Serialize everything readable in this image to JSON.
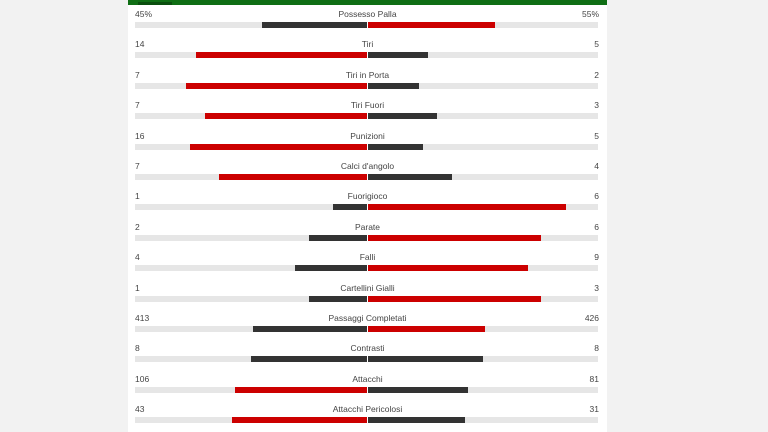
{
  "colors": {
    "header_green": "#0f6e14",
    "red": "#cc0000",
    "dark": "#333333",
    "track": "#e6e6e6"
  },
  "stats": [
    {
      "label": "Possesso Palla",
      "left": "45%",
      "right": "55%",
      "left_frac": 0.45,
      "right_frac": 0.55,
      "left_color": "dark",
      "right_color": "red"
    },
    {
      "label": "Tiri",
      "left": "14",
      "right": "5",
      "left_frac": 0.737,
      "right_frac": 0.263,
      "left_color": "red",
      "right_color": "dark"
    },
    {
      "label": "Tiri in Porta",
      "left": "7",
      "right": "2",
      "left_frac": 0.778,
      "right_frac": 0.222,
      "left_color": "red",
      "right_color": "dark"
    },
    {
      "label": "Tiri Fuori",
      "left": "7",
      "right": "3",
      "left_frac": 0.7,
      "right_frac": 0.3,
      "left_color": "red",
      "right_color": "dark"
    },
    {
      "label": "Punizioni",
      "left": "16",
      "right": "5",
      "left_frac": 0.762,
      "right_frac": 0.238,
      "left_color": "red",
      "right_color": "dark"
    },
    {
      "label": "Calci d'angolo",
      "left": "7",
      "right": "4",
      "left_frac": 0.636,
      "right_frac": 0.364,
      "left_color": "red",
      "right_color": "dark"
    },
    {
      "label": "Fuorigioco",
      "left": "1",
      "right": "6",
      "left_frac": 0.143,
      "right_frac": 0.857,
      "left_color": "dark",
      "right_color": "red"
    },
    {
      "label": "Parate",
      "left": "2",
      "right": "6",
      "left_frac": 0.25,
      "right_frac": 0.75,
      "left_color": "dark",
      "right_color": "red"
    },
    {
      "label": "Falli",
      "left": "4",
      "right": "9",
      "left_frac": 0.308,
      "right_frac": 0.692,
      "left_color": "dark",
      "right_color": "red"
    },
    {
      "label": "Cartellini Gialli",
      "left": "1",
      "right": "3",
      "left_frac": 0.25,
      "right_frac": 0.75,
      "left_color": "dark",
      "right_color": "red"
    },
    {
      "label": "Passaggi Completati",
      "left": "413",
      "right": "426",
      "left_frac": 0.492,
      "right_frac": 0.508,
      "left_color": "dark",
      "right_color": "red"
    },
    {
      "label": "Contrasti",
      "left": "8",
      "right": "8",
      "left_frac": 0.5,
      "right_frac": 0.5,
      "left_color": "dark",
      "right_color": "dark"
    },
    {
      "label": "Attacchi",
      "left": "106",
      "right": "81",
      "left_frac": 0.567,
      "right_frac": 0.433,
      "left_color": "red",
      "right_color": "dark"
    },
    {
      "label": "Attacchi Pericolosi",
      "left": "43",
      "right": "31",
      "left_frac": 0.581,
      "right_frac": 0.419,
      "left_color": "red",
      "right_color": "dark"
    }
  ]
}
